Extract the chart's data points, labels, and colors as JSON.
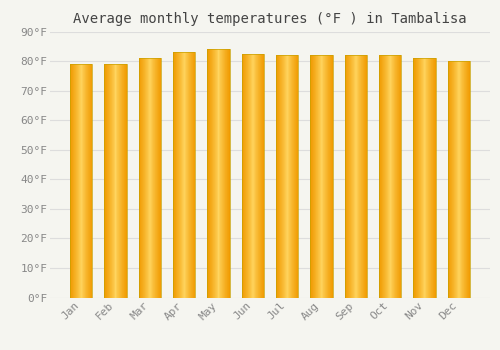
{
  "title": "Average monthly temperatures (°F ) in Tambalisa",
  "months": [
    "Jan",
    "Feb",
    "Mar",
    "Apr",
    "May",
    "Jun",
    "Jul",
    "Aug",
    "Sep",
    "Oct",
    "Nov",
    "Dec"
  ],
  "values": [
    79,
    79,
    81,
    83,
    84,
    82.5,
    82,
    82,
    82,
    82,
    81,
    80
  ],
  "ylim": [
    0,
    90
  ],
  "yticks": [
    0,
    10,
    20,
    30,
    40,
    50,
    60,
    70,
    80,
    90
  ],
  "bar_color_center": "#FFD966",
  "bar_color_edge": "#F0A500",
  "bar_border_color": "#C8922A",
  "background_color": "#F5F5F0",
  "grid_color": "#DDDDDD",
  "title_fontsize": 10,
  "tick_fontsize": 8,
  "bar_width": 0.65
}
